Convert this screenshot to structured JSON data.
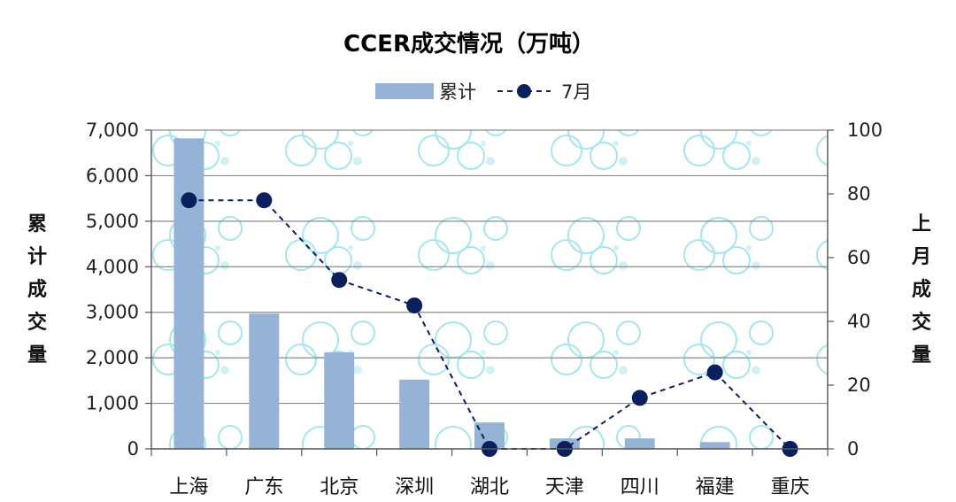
{
  "chart_data": {
    "type": "bar",
    "title": "CCER成交情况（万吨）",
    "categories": [
      "上海",
      "广东",
      "北京",
      "深圳",
      "湖北",
      "天津",
      "四川",
      "福建",
      "重庆"
    ],
    "series": [
      {
        "name": "累计",
        "type": "bar",
        "axis": "left",
        "color": "#95b3d7",
        "values": [
          6820,
          2970,
          2120,
          1520,
          580,
          230,
          230,
          150,
          0
        ]
      },
      {
        "name": "7月",
        "type": "line",
        "axis": "right",
        "color": "#0b1f5c",
        "line_style": "dashed",
        "marker": "circle",
        "values": [
          78,
          78,
          53,
          45,
          0,
          0,
          16,
          24,
          0
        ]
      }
    ],
    "ylabel": "累计成交量",
    "y2label": "上月成交量",
    "ylim": [
      0,
      7000
    ],
    "y2lim": [
      0,
      100
    ],
    "yticks": [
      "0",
      "1,000",
      "2,000",
      "3,000",
      "4,000",
      "5,000",
      "6,000",
      "7,000"
    ],
    "y2ticks": [
      "0",
      "20",
      "40",
      "60",
      "80",
      "100"
    ],
    "grid": true,
    "legend": "top-center"
  }
}
